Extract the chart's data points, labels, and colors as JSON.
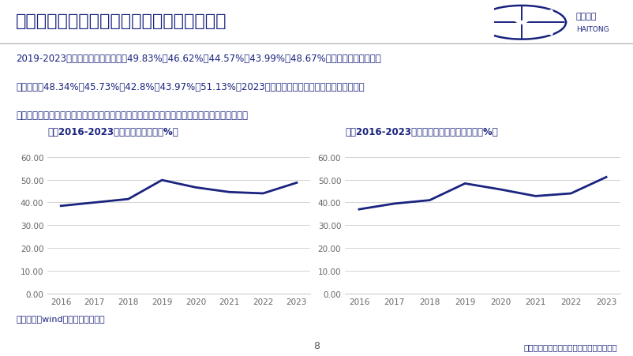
{
  "title": "公司吸附分离材料附加值提高推动毛利率增长",
  "body_line1": "2019-2023年公司综合毛利率分别为49.83%、46.62%、44.57%、43.99%、48.67%，其中离子交换树脂毛",
  "body_line2": "利率分别为48.34%、45.73%、42.8%、43.97%、51.13%，2023年公司毛利率的提升主要得益于高毛利品",
  "body_line3": "种，如生命科学业务维持较高增速，占比增加；同时也得益于生产精细化管理和成本控制加强。",
  "chart1_title": "图：2016-2023年公司销售毛利率（%）",
  "chart2_title": "图：2016-2023年公司离子交换树脂毛利率（%）",
  "years": [
    2016,
    2017,
    2018,
    2019,
    2020,
    2021,
    2022,
    2023
  ],
  "gross_margin": [
    38.5,
    40.0,
    41.5,
    49.83,
    46.62,
    44.57,
    43.99,
    48.67
  ],
  "ion_exchange_margin": [
    37.0,
    39.5,
    41.0,
    48.34,
    45.73,
    42.8,
    43.97,
    51.13
  ],
  "yticks": [
    0.0,
    10.0,
    20.0,
    30.0,
    40.0,
    50.0,
    60.0
  ],
  "ylim": [
    0,
    65
  ],
  "line_color": "#1a237e",
  "line_width": 2.0,
  "bg_color": "#ffffff",
  "title_color": "#1a237e",
  "body_color": "#1a237e",
  "chart_title_color": "#1a237e",
  "axis_label_color": "#666666",
  "grid_color": "#cccccc",
  "footer_text": "资料来源：wind，海通证券研究所",
  "footer_color": "#1a237e",
  "page_number": "8",
  "disclaimer": "请务必阅读正文之后的信息披露和法律声明",
  "disclaimer_color": "#1a237e",
  "logo_text1": "海通证券",
  "logo_text2": "HAITONG"
}
